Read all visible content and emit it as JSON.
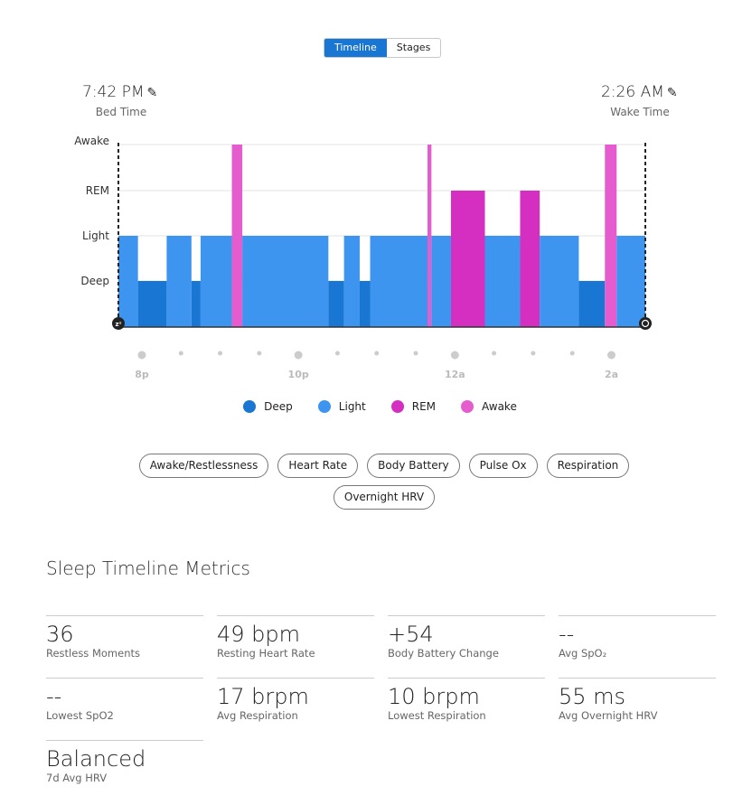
{
  "view_toggle": {
    "options": [
      "Timeline",
      "Stages"
    ],
    "selected": "Timeline"
  },
  "bed_time": {
    "value": "7:42 PM",
    "label": "Bed Time",
    "icon": "pencil-icon"
  },
  "wake_time": {
    "value": "2:26 AM",
    "label": "Wake Time",
    "icon": "pencil-icon"
  },
  "chart_data": {
    "type": "timeline",
    "x_range": [
      "19:42",
      "02:26"
    ],
    "y_levels": [
      "Deep",
      "Light",
      "REM",
      "Awake"
    ],
    "x_ticks": [
      {
        "time": "20:00",
        "label": "8p"
      },
      {
        "time": "22:00",
        "label": "10p"
      },
      {
        "time": "00:00",
        "label": "12a"
      },
      {
        "time": "02:00",
        "label": "2a"
      }
    ],
    "colors": {
      "Deep": "#1976d2",
      "Light": "#3d95f0",
      "REM": "#d42fc0",
      "Awake": "#e45ccd"
    },
    "segments": [
      {
        "start": "19:42",
        "end": "19:57",
        "stage": "Light"
      },
      {
        "start": "19:57",
        "end": "20:19",
        "stage": "Deep"
      },
      {
        "start": "20:19",
        "end": "20:38",
        "stage": "Light"
      },
      {
        "start": "20:38",
        "end": "20:45",
        "stage": "Deep"
      },
      {
        "start": "20:45",
        "end": "21:09",
        "stage": "Light"
      },
      {
        "start": "21:09",
        "end": "21:17",
        "stage": "Awake"
      },
      {
        "start": "21:17",
        "end": "22:23",
        "stage": "Light"
      },
      {
        "start": "22:23",
        "end": "22:35",
        "stage": "Deep"
      },
      {
        "start": "22:35",
        "end": "22:47",
        "stage": "Light"
      },
      {
        "start": "22:47",
        "end": "22:55",
        "stage": "Deep"
      },
      {
        "start": "22:55",
        "end": "23:39",
        "stage": "Light"
      },
      {
        "start": "23:39",
        "end": "23:42",
        "stage": "Awake"
      },
      {
        "start": "23:42",
        "end": "23:57",
        "stage": "Light"
      },
      {
        "start": "23:57",
        "end": "00:23",
        "stage": "REM"
      },
      {
        "start": "00:23",
        "end": "00:50",
        "stage": "Light"
      },
      {
        "start": "00:50",
        "end": "01:05",
        "stage": "REM"
      },
      {
        "start": "01:05",
        "end": "01:35",
        "stage": "Light"
      },
      {
        "start": "01:35",
        "end": "01:55",
        "stage": "Deep"
      },
      {
        "start": "01:55",
        "end": "02:04",
        "stage": "Awake"
      },
      {
        "start": "02:04",
        "end": "02:26",
        "stage": "Light"
      }
    ],
    "legend": [
      "Deep",
      "Light",
      "REM",
      "Awake"
    ],
    "legend_position": "bottom"
  },
  "overlay_buttons": [
    "Awake/Restlessness",
    "Heart Rate",
    "Body Battery",
    "Pulse Ox",
    "Respiration",
    "Overnight HRV"
  ],
  "metrics_title": "Sleep Timeline Metrics",
  "metrics": [
    {
      "value": "36",
      "label": "Restless Moments"
    },
    {
      "value": "49 bpm",
      "label": "Resting Heart Rate"
    },
    {
      "value": "+54",
      "label": "Body Battery Change"
    },
    {
      "value": "--",
      "label": "Avg SpO₂"
    },
    {
      "value": "--",
      "label": "Lowest SpO2"
    },
    {
      "value": "17 brpm",
      "label": "Avg Respiration"
    },
    {
      "value": "10 brpm",
      "label": "Lowest Respiration"
    },
    {
      "value": "55 ms",
      "label": "Avg Overnight HRV"
    },
    {
      "value": "Balanced",
      "label": "7d Avg HRV"
    }
  ]
}
